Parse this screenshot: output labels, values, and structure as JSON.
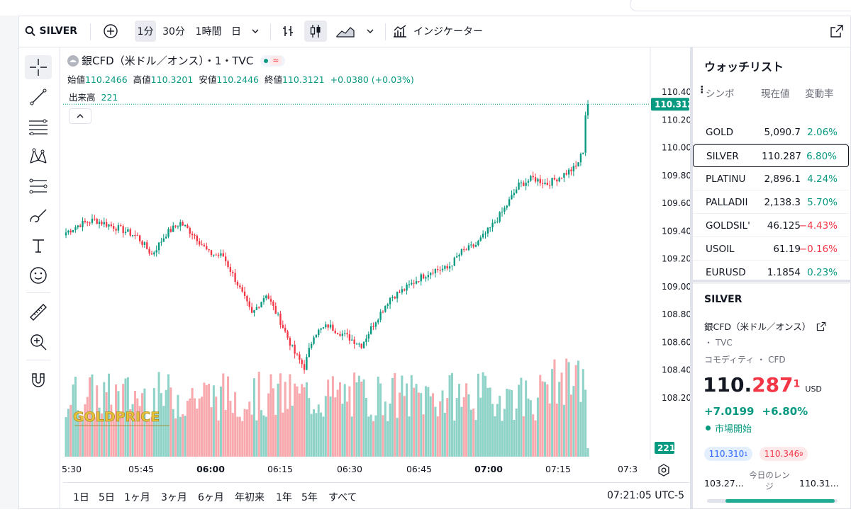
{
  "toolbar": {
    "symbol": "SILVER",
    "intervals": [
      "1分",
      "30分",
      "1時間",
      "日"
    ],
    "indicators_label": "インジケーター"
  },
  "legend": {
    "title": "銀CFD（米ドル／オンス）・1・TVC",
    "open_label": "始値",
    "open": "110.2466",
    "high_label": "高値",
    "high": "110.3201",
    "low_label": "安値",
    "low": "110.2446",
    "close_label": "終値",
    "close": "110.3121",
    "change": "+0.0380 (+0.03%)",
    "volume_label": "出来高",
    "volume": "221"
  },
  "price_axis": {
    "labels": [
      "110.4000",
      "110.2000",
      "110.0000",
      "109.8000",
      "109.6000",
      "109.4000",
      "109.2000",
      "109.0000",
      "108.8000",
      "108.6000",
      "108.4000",
      "108.2000"
    ],
    "current_price_tag": "110.3121",
    "volume_tag": "221"
  },
  "time_axis": [
    "5:30",
    "05:45",
    "06:00",
    "06:15",
    "06:30",
    "06:45",
    "07:00",
    "07:15",
    "07:3"
  ],
  "watermark": "GOLDPRICE",
  "range_buttons": [
    "1日",
    "5日",
    "1ヶ月",
    "3ヶ月",
    "6ヶ月",
    "年初来",
    "1年",
    "5年",
    "すべて"
  ],
  "clock": "07:21:05 UTC-5",
  "watchlist": {
    "title": "ウォッチリスト",
    "headers": {
      "symbol": "シンボ",
      "last": "現在値",
      "change": "変動率"
    },
    "rows": [
      {
        "symbol": "GOLD",
        "last": "5,090.7",
        "change": "2.06%",
        "dir": "up"
      },
      {
        "symbol": "SILVER",
        "last": "110.287",
        "change": "6.80%",
        "dir": "up"
      },
      {
        "symbol": "PLATINU",
        "last": "2,896.1",
        "change": "4.24%",
        "dir": "up"
      },
      {
        "symbol": "PALLADII",
        "last": "2,138.3",
        "change": "5.70%",
        "dir": "up"
      },
      {
        "symbol": "GOLDSIL'",
        "last": "46.125",
        "change": "−4.43%",
        "dir": "down"
      },
      {
        "symbol": "USOIL",
        "last": "61.19",
        "change": "−0.16%",
        "dir": "down"
      },
      {
        "symbol": "EURUSD",
        "last": "1.1854",
        "change": "0.23%",
        "dir": "up"
      }
    ]
  },
  "details": {
    "symbol": "SILVER",
    "name": "銀CFD（米ドル／オンス）",
    "exchange": "・ TVC",
    "category": "コモディティ ・ CFD",
    "price_main": "110.287",
    "price_sup": "1",
    "currency": "USD",
    "change_abs": "+7.0199",
    "change_pct": "+6.80%",
    "market_status": "市場開始",
    "bid": "110.310",
    "bid_sup": "1",
    "ask": "110.346",
    "ask_sup": "9",
    "range_label": "今日のレンジ",
    "range_low": "103.27...",
    "range_high": "110.31..."
  },
  "colors": {
    "up": "#089981",
    "down": "#f23645",
    "vol_up": "#8fd3c8",
    "vol_down": "#f7a9ae"
  }
}
